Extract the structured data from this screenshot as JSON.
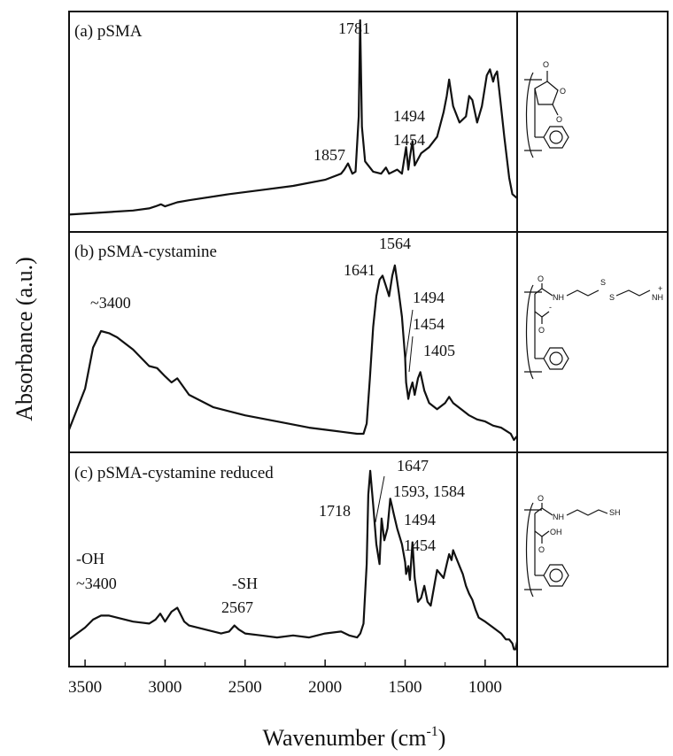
{
  "chart_data": {
    "type": "line",
    "xlabel": "Wavenumber (cm",
    "xlabel_sup": "-1",
    "xlabel_close": ")",
    "ylabel": "Absorbance (a.u.)",
    "xlim": [
      3600,
      800
    ],
    "x_reversed": true,
    "xticks": [
      3500,
      3000,
      2500,
      2000,
      1500,
      1000
    ],
    "xtick_labels": [
      "3500",
      "3000",
      "2500",
      "2000",
      "1500",
      "1000"
    ],
    "grid": false,
    "line_color": "#111111",
    "panels": [
      {
        "title": "(a) pSMA",
        "annotations": [
          "1781",
          "1857",
          "1494",
          "1454"
        ],
        "series": [
          {
            "x": [
              3600,
              3400,
              3200,
              3100,
              3060,
              3026,
              3000,
              2924,
              2850,
              2600,
              2400,
              2200,
              2000,
              1900,
              1880,
              1857,
              1830,
              1810,
              1790,
              1781,
              1770,
              1750,
              1700,
              1650,
              1620,
              1600,
              1550,
              1520,
              1494,
              1480,
              1470,
              1454,
              1440,
              1400,
              1350,
              1300,
              1260,
              1240,
              1225,
              1200,
              1160,
              1120,
              1100,
              1080,
              1050,
              1020,
              990,
              970,
              950,
              940,
              925,
              905,
              880,
              850,
              830,
              800
            ],
            "y": [
              0.02,
              0.03,
              0.04,
              0.05,
              0.06,
              0.07,
              0.06,
              0.08,
              0.09,
              0.12,
              0.14,
              0.16,
              0.19,
              0.22,
              0.24,
              0.27,
              0.22,
              0.23,
              0.5,
              0.97,
              0.45,
              0.28,
              0.23,
              0.22,
              0.25,
              0.22,
              0.24,
              0.22,
              0.35,
              0.24,
              0.3,
              0.38,
              0.26,
              0.32,
              0.35,
              0.4,
              0.52,
              0.6,
              0.68,
              0.55,
              0.47,
              0.5,
              0.6,
              0.58,
              0.47,
              0.55,
              0.7,
              0.73,
              0.67,
              0.7,
              0.72,
              0.58,
              0.4,
              0.2,
              0.12,
              0.1
            ]
          }
        ],
        "structure": {
          "labels": [
            "O",
            "O",
            "O"
          ]
        }
      },
      {
        "title": "(b) pSMA-cystamine",
        "annotations": [
          "1564",
          "1641",
          "~3400",
          "1494",
          "1454",
          "1405"
        ],
        "series": [
          {
            "x": [
              3600,
              3500,
              3450,
              3400,
              3350,
              3300,
              3200,
              3100,
              3050,
              3000,
              2960,
              2924,
              2850,
              2700,
              2500,
              2300,
              2100,
              2000,
              1900,
              1800,
              1760,
              1740,
              1720,
              1700,
              1680,
              1660,
              1641,
              1620,
              1600,
              1580,
              1564,
              1540,
              1520,
              1500,
              1494,
              1480,
              1470,
              1454,
              1440,
              1420,
              1405,
              1380,
              1350,
              1300,
              1250,
              1225,
              1200,
              1150,
              1100,
              1050,
              1000,
              950,
              900,
              860,
              840,
              820,
              800
            ],
            "y": [
              0.05,
              0.25,
              0.45,
              0.53,
              0.52,
              0.5,
              0.44,
              0.36,
              0.35,
              0.31,
              0.28,
              0.3,
              0.22,
              0.16,
              0.12,
              0.09,
              0.06,
              0.05,
              0.04,
              0.03,
              0.03,
              0.08,
              0.3,
              0.55,
              0.7,
              0.78,
              0.8,
              0.75,
              0.7,
              0.8,
              0.85,
              0.72,
              0.6,
              0.4,
              0.28,
              0.2,
              0.24,
              0.28,
              0.22,
              0.3,
              0.33,
              0.24,
              0.18,
              0.15,
              0.18,
              0.21,
              0.18,
              0.15,
              0.12,
              0.1,
              0.09,
              0.07,
              0.06,
              0.04,
              0.03,
              0.0,
              0.02
            ]
          }
        ],
        "structure": {
          "labels": [
            "O",
            "NH",
            "S",
            "S",
            "NH",
            "O",
            "-",
            "+"
          ]
        }
      },
      {
        "title": "(c) pSMA-cystamine reduced",
        "annotations": [
          "1647",
          "1593, 1584",
          "1718",
          "1494",
          "1454",
          "-OH",
          "~3400",
          "-SH",
          "2567"
        ],
        "series": [
          {
            "x": [
              3600,
              3500,
              3450,
              3400,
              3350,
              3300,
              3200,
              3100,
              3060,
              3030,
              3000,
              2960,
              2924,
              2880,
              2850,
              2750,
              2650,
              2600,
              2567,
              2540,
              2500,
              2400,
              2300,
              2200,
              2100,
              2000,
              1900,
              1850,
              1800,
              1780,
              1760,
              1740,
              1730,
              1718,
              1700,
              1680,
              1660,
              1647,
              1630,
              1610,
              1593,
              1584,
              1570,
              1550,
              1520,
              1500,
              1494,
              1480,
              1470,
              1454,
              1440,
              1420,
              1400,
              1380,
              1360,
              1340,
              1320,
              1300,
              1260,
              1240,
              1225,
              1210,
              1200,
              1180,
              1160,
              1140,
              1120,
              1100,
              1080,
              1060,
              1040,
              1000,
              950,
              900,
              870,
              850,
              830,
              820,
              810,
              800
            ],
            "y": [
              0.07,
              0.13,
              0.17,
              0.19,
              0.19,
              0.18,
              0.16,
              0.15,
              0.17,
              0.2,
              0.16,
              0.21,
              0.23,
              0.16,
              0.14,
              0.12,
              0.1,
              0.11,
              0.14,
              0.12,
              0.1,
              0.09,
              0.08,
              0.09,
              0.08,
              0.1,
              0.11,
              0.09,
              0.08,
              0.1,
              0.15,
              0.45,
              0.8,
              0.92,
              0.75,
              0.55,
              0.45,
              0.68,
              0.57,
              0.63,
              0.78,
              0.75,
              0.7,
              0.63,
              0.55,
              0.46,
              0.4,
              0.44,
              0.37,
              0.56,
              0.38,
              0.26,
              0.28,
              0.34,
              0.26,
              0.24,
              0.33,
              0.42,
              0.38,
              0.45,
              0.5,
              0.47,
              0.52,
              0.48,
              0.44,
              0.4,
              0.34,
              0.3,
              0.27,
              0.22,
              0.18,
              0.16,
              0.13,
              0.1,
              0.07,
              0.07,
              0.05,
              0.02,
              0.02,
              0.06
            ]
          }
        ],
        "structure": {
          "labels": [
            "O",
            "NH",
            "SH",
            "OH",
            "O"
          ]
        }
      }
    ]
  }
}
